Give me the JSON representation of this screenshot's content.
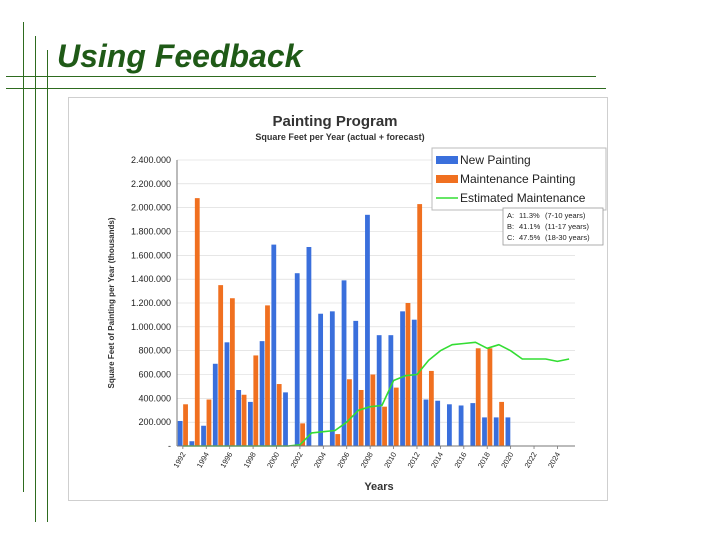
{
  "slide": {
    "title": "Using Feedback"
  },
  "colors": {
    "new_painting": "#3a6fdc",
    "maintenance_painting": "#f07020",
    "estimated_maintenance": "#33dd33",
    "title_green": "#1f5a17"
  },
  "chart_data": {
    "type": "bar",
    "title": "Painting Program",
    "subtitle": "Square Feet per Year (actual + forecast)",
    "xlabel": "Years",
    "ylabel": "Square Feet of Painting per Year (thousands)",
    "ylim": [
      0,
      2400
    ],
    "yticks": [
      0,
      200,
      400,
      600,
      800,
      1000,
      1200,
      1400,
      1600,
      1800,
      2000,
      2200,
      2400
    ],
    "ytick_labels": [
      "-",
      "200.000",
      "400.000",
      "600.000",
      "800.000",
      "1.000.000",
      "1.200.000",
      "1.400.000",
      "1.600.000",
      "1.800.000",
      "2.000.000",
      "2.200.000",
      "2.400.000"
    ],
    "categories": [
      1992,
      1993,
      1994,
      1995,
      1996,
      1997,
      1998,
      1999,
      2000,
      2001,
      2002,
      2003,
      2004,
      2005,
      2006,
      2007,
      2008,
      2009,
      2010,
      2011,
      2012,
      2013,
      2014,
      2015,
      2016,
      2017,
      2018,
      2019,
      2020,
      2021,
      2022,
      2023,
      2024,
      2025
    ],
    "xtick_labels": [
      "1992",
      "1994",
      "1996",
      "1998",
      "2000",
      "2002",
      "2004",
      "2006",
      "2008",
      "2010",
      "2012",
      "2014",
      "2016",
      "2018",
      "2020",
      "2022",
      "2024"
    ],
    "legend_position": "top-right",
    "series": [
      {
        "name": "New Painting",
        "kind": "bar",
        "color": "#3a6fdc",
        "values": [
          210,
          40,
          170,
          690,
          870,
          470,
          370,
          880,
          1690,
          450,
          1450,
          1670,
          1110,
          1130,
          1390,
          1050,
          1940,
          930,
          930,
          1130,
          1060,
          390,
          380,
          350,
          340,
          360,
          240,
          240,
          240,
          0,
          0,
          0,
          0,
          0
        ]
      },
      {
        "name": "Maintenance Painting",
        "kind": "bar",
        "color": "#f07020",
        "values": [
          350,
          2080,
          390,
          1350,
          1240,
          430,
          760,
          1180,
          520,
          0,
          190,
          0,
          0,
          100,
          560,
          470,
          600,
          330,
          490,
          1200,
          2030,
          630,
          0,
          0,
          0,
          820,
          820,
          370,
          0,
          0,
          0,
          0,
          0,
          0
        ]
      },
      {
        "name": "Estimated Maintenance",
        "kind": "line",
        "color": "#33dd33",
        "x": [
          1992,
          1994,
          1996,
          1998,
          2000,
          2001,
          2002,
          2003,
          2004,
          2005,
          2006,
          2007,
          2008,
          2009,
          2010,
          2011,
          2012,
          2013,
          2014,
          2015,
          2016,
          2017,
          2018,
          2019,
          2020,
          2021,
          2022,
          2023,
          2024,
          2025
        ],
        "values": [
          0,
          0,
          0,
          0,
          0,
          0,
          10,
          110,
          120,
          130,
          200,
          300,
          330,
          340,
          550,
          590,
          600,
          720,
          800,
          850,
          860,
          870,
          820,
          850,
          800,
          730,
          730,
          730,
          710,
          730
        ]
      }
    ],
    "annotation": {
      "lines": [
        {
          "label": "A:",
          "pct": "11.3%",
          "range": "(7-10 years)"
        },
        {
          "label": "B:",
          "pct": "41.1%",
          "range": "(11-17 years)"
        },
        {
          "label": "C:",
          "pct": "47.5%",
          "range": "(18-30 years)"
        }
      ]
    }
  }
}
